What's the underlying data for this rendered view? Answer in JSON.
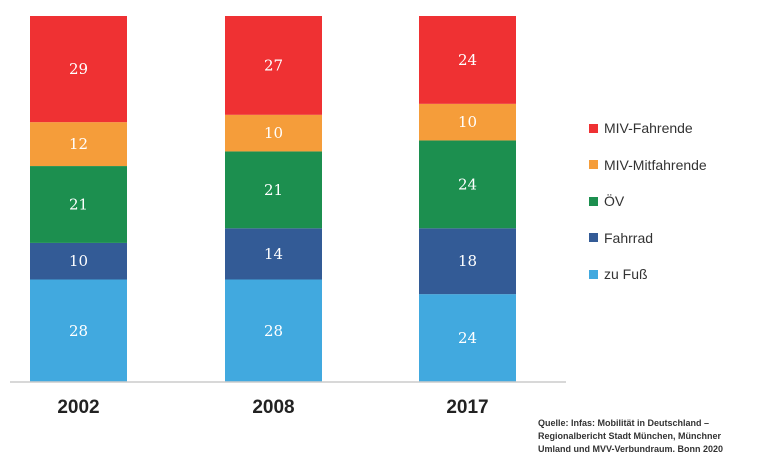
{
  "chart_data": {
    "type": "bar",
    "stacked": true,
    "categories": [
      "2002",
      "2008",
      "2017"
    ],
    "series": [
      {
        "name": "zu Fuß",
        "color": "#41a9df",
        "values": [
          28,
          28,
          24
        ]
      },
      {
        "name": "Fahrrad",
        "color": "#335b96",
        "values": [
          10,
          14,
          18
        ]
      },
      {
        "name": "ÖV",
        "color": "#1c8f4f",
        "values": [
          21,
          21,
          24
        ]
      },
      {
        "name": "MIV-Mitfahrende",
        "color": "#f59d3a",
        "values": [
          12,
          10,
          10
        ]
      },
      {
        "name": "MIV-Fahrende",
        "color": "#ef3133",
        "values": [
          29,
          27,
          24
        ]
      }
    ],
    "ylim": [
      0,
      100
    ],
    "legend_position": "right"
  },
  "source_lines": [
    "Quelle: Infas: Mobilität in Deutschland –",
    "Regionalbericht Stadt München, Münchner",
    "Umland und MVV-Verbundraum. Bonn 2020"
  ]
}
